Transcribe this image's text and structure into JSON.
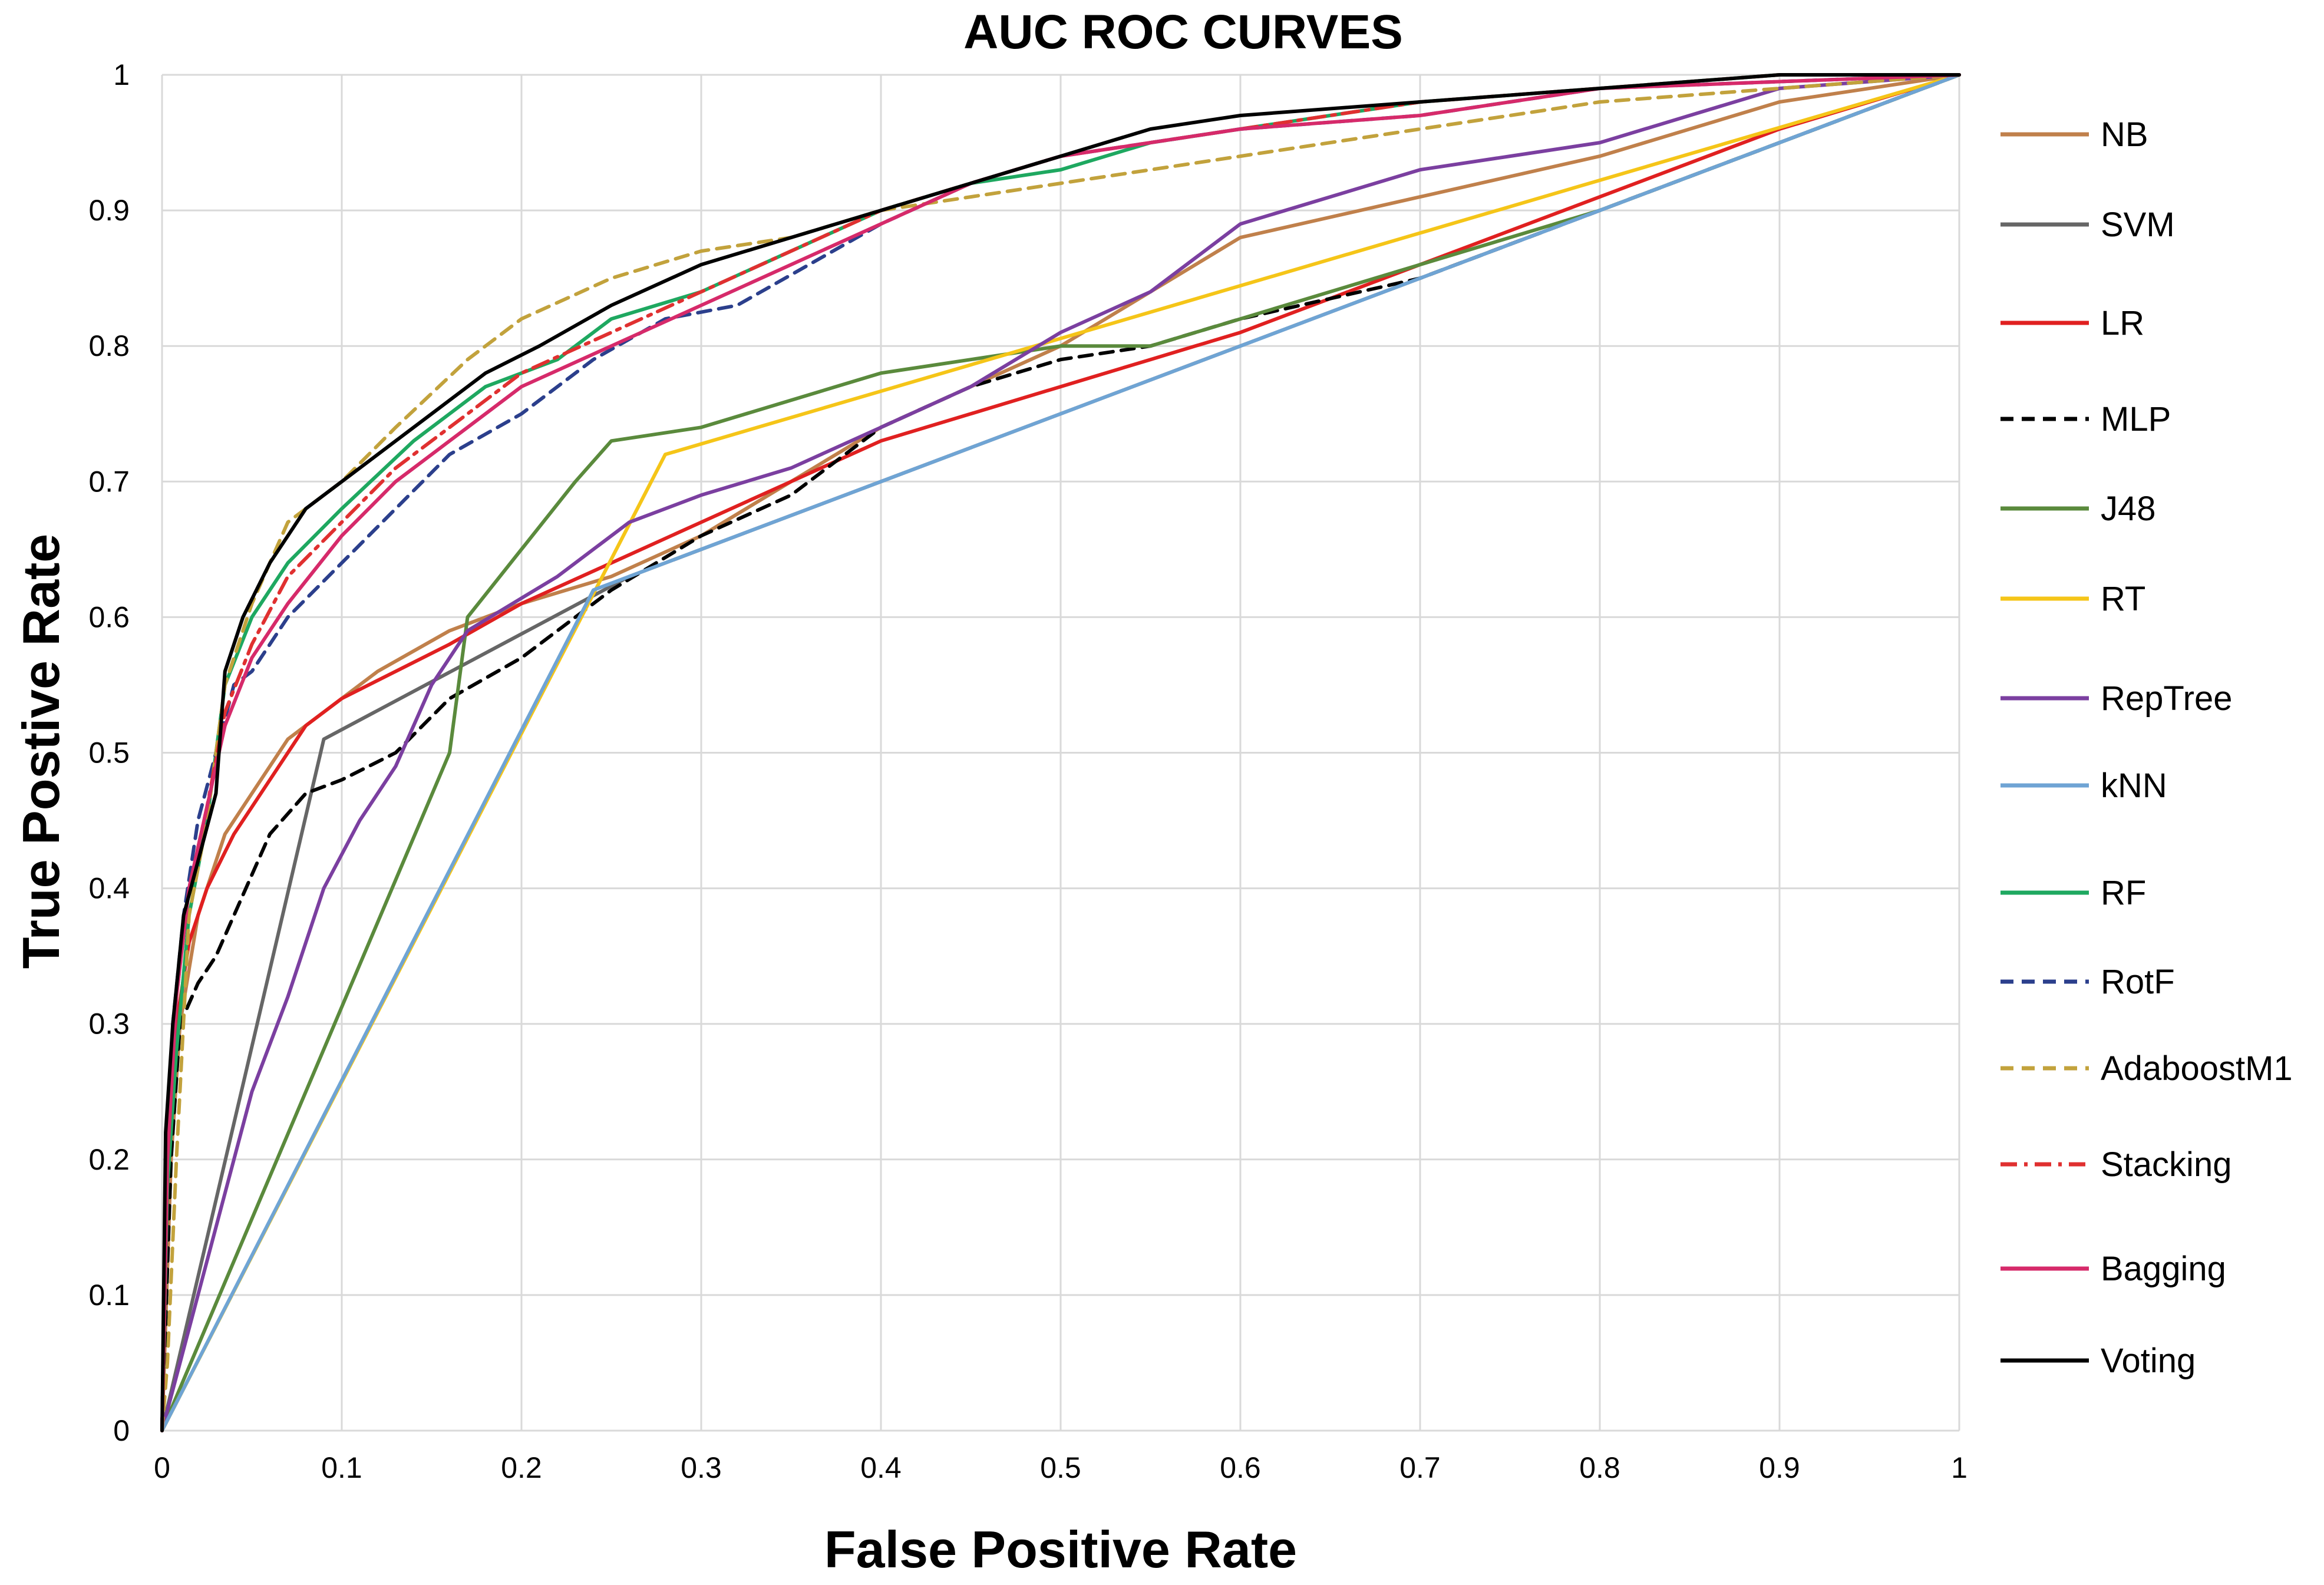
{
  "chart_data": {
    "type": "line",
    "title": "AUC ROC CURVES",
    "xlabel": "False Positive Rate",
    "ylabel": "True Postive Rate",
    "xlim": [
      0,
      1
    ],
    "ylim": [
      0,
      1
    ],
    "grid": true,
    "legend_position": "right",
    "x_ticks": [
      "0",
      "0.1",
      "0.2",
      "0.3",
      "0.4",
      "0.5",
      "0.6",
      "0.7",
      "0.8",
      "0.9",
      "1"
    ],
    "y_ticks": [
      "0",
      "0.1",
      "0.2",
      "0.3",
      "0.4",
      "0.5",
      "0.6",
      "0.7",
      "0.8",
      "0.9",
      "1"
    ],
    "series": [
      {
        "name": "NB",
        "color": "#c0804b",
        "dash": "solid",
        "points": [
          [
            0,
            0
          ],
          [
            0.005,
            0.2
          ],
          [
            0.01,
            0.3
          ],
          [
            0.02,
            0.38
          ],
          [
            0.035,
            0.44
          ],
          [
            0.05,
            0.47
          ],
          [
            0.07,
            0.51
          ],
          [
            0.09,
            0.53
          ],
          [
            0.12,
            0.56
          ],
          [
            0.16,
            0.59
          ],
          [
            0.2,
            0.61
          ],
          [
            0.25,
            0.63
          ],
          [
            0.3,
            0.66
          ],
          [
            0.35,
            0.7
          ],
          [
            0.4,
            0.74
          ],
          [
            0.45,
            0.77
          ],
          [
            0.5,
            0.8
          ],
          [
            0.55,
            0.84
          ],
          [
            0.6,
            0.88
          ],
          [
            0.7,
            0.91
          ],
          [
            0.8,
            0.94
          ],
          [
            0.9,
            0.98
          ],
          [
            1,
            1
          ]
        ]
      },
      {
        "name": "SVM",
        "color": "#666666",
        "dash": "solid",
        "points": [
          [
            0,
            0
          ],
          [
            0.09,
            0.51
          ],
          [
            0.26,
            0.63
          ],
          [
            1,
            1
          ]
        ]
      },
      {
        "name": "LR",
        "color": "#e02020",
        "dash": "solid",
        "points": [
          [
            0,
            0
          ],
          [
            0.003,
            0.18
          ],
          [
            0.008,
            0.3
          ],
          [
            0.015,
            0.36
          ],
          [
            0.025,
            0.4
          ],
          [
            0.04,
            0.44
          ],
          [
            0.06,
            0.48
          ],
          [
            0.08,
            0.52
          ],
          [
            0.1,
            0.54
          ],
          [
            0.13,
            0.56
          ],
          [
            0.16,
            0.58
          ],
          [
            0.2,
            0.61
          ],
          [
            0.25,
            0.64
          ],
          [
            0.3,
            0.67
          ],
          [
            0.35,
            0.7
          ],
          [
            0.4,
            0.73
          ],
          [
            0.45,
            0.75
          ],
          [
            0.5,
            0.77
          ],
          [
            0.55,
            0.79
          ],
          [
            0.6,
            0.81
          ],
          [
            0.7,
            0.86
          ],
          [
            0.8,
            0.91
          ],
          [
            0.9,
            0.96
          ],
          [
            1,
            1
          ]
        ]
      },
      {
        "name": "MLP",
        "color": "#000000",
        "dash": "dashed",
        "points": [
          [
            0,
            0
          ],
          [
            0.005,
            0.2
          ],
          [
            0.01,
            0.3
          ],
          [
            0.02,
            0.33
          ],
          [
            0.03,
            0.35
          ],
          [
            0.04,
            0.38
          ],
          [
            0.06,
            0.44
          ],
          [
            0.08,
            0.47
          ],
          [
            0.1,
            0.48
          ],
          [
            0.13,
            0.5
          ],
          [
            0.16,
            0.54
          ],
          [
            0.2,
            0.57
          ],
          [
            0.25,
            0.62
          ],
          [
            0.3,
            0.66
          ],
          [
            0.35,
            0.69
          ],
          [
            0.4,
            0.74
          ],
          [
            0.45,
            0.77
          ],
          [
            0.5,
            0.79
          ],
          [
            0.55,
            0.8
          ],
          [
            0.6,
            0.82
          ],
          [
            0.7,
            0.85
          ],
          [
            0.8,
            0.9
          ],
          [
            0.9,
            0.95
          ],
          [
            1,
            1
          ]
        ]
      },
      {
        "name": "J48",
        "color": "#5a8a3c",
        "dash": "solid",
        "points": [
          [
            0,
            0
          ],
          [
            0.16,
            0.5
          ],
          [
            0.17,
            0.6
          ],
          [
            0.2,
            0.65
          ],
          [
            0.23,
            0.7
          ],
          [
            0.25,
            0.73
          ],
          [
            0.3,
            0.74
          ],
          [
            0.35,
            0.76
          ],
          [
            0.4,
            0.78
          ],
          [
            0.45,
            0.79
          ],
          [
            0.5,
            0.8
          ],
          [
            0.55,
            0.8
          ],
          [
            0.6,
            0.82
          ],
          [
            0.7,
            0.86
          ],
          [
            0.8,
            0.9
          ],
          [
            0.9,
            0.95
          ],
          [
            1,
            1
          ]
        ]
      },
      {
        "name": "RT",
        "color": "#f5c518",
        "dash": "solid",
        "points": [
          [
            0,
            0
          ],
          [
            0.28,
            0.72
          ],
          [
            1,
            1
          ]
        ]
      },
      {
        "name": "RepTree",
        "color": "#7b3fa0",
        "dash": "solid",
        "points": [
          [
            0,
            0
          ],
          [
            0.03,
            0.15
          ],
          [
            0.05,
            0.25
          ],
          [
            0.07,
            0.32
          ],
          [
            0.09,
            0.4
          ],
          [
            0.11,
            0.45
          ],
          [
            0.13,
            0.49
          ],
          [
            0.14,
            0.52
          ],
          [
            0.15,
            0.55
          ],
          [
            0.17,
            0.59
          ],
          [
            0.22,
            0.63
          ],
          [
            0.26,
            0.67
          ],
          [
            0.3,
            0.69
          ],
          [
            0.35,
            0.71
          ],
          [
            0.4,
            0.74
          ],
          [
            0.45,
            0.77
          ],
          [
            0.5,
            0.81
          ],
          [
            0.55,
            0.84
          ],
          [
            0.6,
            0.89
          ],
          [
            0.65,
            0.91
          ],
          [
            0.7,
            0.93
          ],
          [
            0.75,
            0.94
          ],
          [
            0.8,
            0.95
          ],
          [
            0.85,
            0.97
          ],
          [
            0.9,
            0.99
          ],
          [
            1,
            1
          ]
        ]
      },
      {
        "name": "kNN",
        "color": "#6fa4d4",
        "dash": "solid",
        "points": [
          [
            0,
            0
          ],
          [
            0.24,
            0.62
          ],
          [
            0.3,
            0.65
          ],
          [
            0.5,
            0.75
          ],
          [
            0.7,
            0.85
          ],
          [
            1,
            1
          ]
        ]
      },
      {
        "name": "RF",
        "color": "#1ea860",
        "dash": "solid",
        "points": [
          [
            0,
            0
          ],
          [
            0.003,
            0.18
          ],
          [
            0.008,
            0.28
          ],
          [
            0.015,
            0.38
          ],
          [
            0.025,
            0.45
          ],
          [
            0.035,
            0.55
          ],
          [
            0.05,
            0.6
          ],
          [
            0.07,
            0.64
          ],
          [
            0.1,
            0.68
          ],
          [
            0.14,
            0.73
          ],
          [
            0.18,
            0.77
          ],
          [
            0.22,
            0.79
          ],
          [
            0.25,
            0.82
          ],
          [
            0.3,
            0.84
          ],
          [
            0.35,
            0.87
          ],
          [
            0.4,
            0.9
          ],
          [
            0.45,
            0.92
          ],
          [
            0.5,
            0.93
          ],
          [
            0.55,
            0.95
          ],
          [
            0.6,
            0.96
          ],
          [
            0.7,
            0.98
          ],
          [
            0.8,
            0.99
          ],
          [
            0.9,
            1
          ],
          [
            1,
            1
          ]
        ]
      },
      {
        "name": "RotF",
        "color": "#2b3f8c",
        "dash": "dashed",
        "points": [
          [
            0,
            0
          ],
          [
            0.002,
            0.2
          ],
          [
            0.006,
            0.3
          ],
          [
            0.012,
            0.38
          ],
          [
            0.02,
            0.45
          ],
          [
            0.03,
            0.5
          ],
          [
            0.04,
            0.55
          ],
          [
            0.05,
            0.56
          ],
          [
            0.07,
            0.6
          ],
          [
            0.1,
            0.64
          ],
          [
            0.13,
            0.68
          ],
          [
            0.16,
            0.72
          ],
          [
            0.2,
            0.75
          ],
          [
            0.24,
            0.79
          ],
          [
            0.28,
            0.82
          ],
          [
            0.32,
            0.83
          ],
          [
            0.36,
            0.86
          ],
          [
            0.4,
            0.89
          ],
          [
            0.45,
            0.92
          ],
          [
            0.5,
            0.94
          ],
          [
            0.6,
            0.96
          ],
          [
            0.7,
            0.97
          ],
          [
            0.8,
            0.99
          ],
          [
            0.9,
            0.995
          ],
          [
            1,
            1
          ]
        ]
      },
      {
        "name": "AdaboostM1",
        "color": "#c2a23c",
        "dash": "dashed",
        "points": [
          [
            0,
            0
          ],
          [
            0.003,
            0.05
          ],
          [
            0.008,
            0.2
          ],
          [
            0.015,
            0.38
          ],
          [
            0.025,
            0.45
          ],
          [
            0.035,
            0.55
          ],
          [
            0.05,
            0.61
          ],
          [
            0.07,
            0.67
          ],
          [
            0.1,
            0.7
          ],
          [
            0.13,
            0.74
          ],
          [
            0.17,
            0.79
          ],
          [
            0.2,
            0.82
          ],
          [
            0.25,
            0.85
          ],
          [
            0.3,
            0.87
          ],
          [
            0.35,
            0.88
          ],
          [
            0.4,
            0.9
          ],
          [
            0.45,
            0.91
          ],
          [
            0.5,
            0.92
          ],
          [
            0.55,
            0.93
          ],
          [
            0.6,
            0.94
          ],
          [
            0.7,
            0.96
          ],
          [
            0.8,
            0.98
          ],
          [
            0.9,
            0.99
          ],
          [
            1,
            1
          ]
        ]
      },
      {
        "name": "Stacking",
        "color": "#e03030",
        "dash": "dashdot",
        "points": [
          [
            0,
            0
          ],
          [
            0.003,
            0.2
          ],
          [
            0.008,
            0.32
          ],
          [
            0.015,
            0.4
          ],
          [
            0.025,
            0.46
          ],
          [
            0.035,
            0.53
          ],
          [
            0.05,
            0.58
          ],
          [
            0.07,
            0.63
          ],
          [
            0.1,
            0.67
          ],
          [
            0.13,
            0.71
          ],
          [
            0.17,
            0.75
          ],
          [
            0.2,
            0.78
          ],
          [
            0.25,
            0.81
          ],
          [
            0.3,
            0.84
          ],
          [
            0.35,
            0.87
          ],
          [
            0.4,
            0.9
          ],
          [
            0.45,
            0.92
          ],
          [
            0.5,
            0.94
          ],
          [
            0.6,
            0.96
          ],
          [
            0.7,
            0.98
          ],
          [
            0.8,
            0.99
          ],
          [
            0.9,
            1
          ],
          [
            1,
            1
          ]
        ]
      },
      {
        "name": "Bagging",
        "color": "#d62a6a",
        "dash": "solid",
        "points": [
          [
            0,
            0
          ],
          [
            0.003,
            0.2
          ],
          [
            0.008,
            0.32
          ],
          [
            0.015,
            0.4
          ],
          [
            0.025,
            0.46
          ],
          [
            0.035,
            0.52
          ],
          [
            0.05,
            0.57
          ],
          [
            0.07,
            0.61
          ],
          [
            0.1,
            0.66
          ],
          [
            0.13,
            0.7
          ],
          [
            0.17,
            0.74
          ],
          [
            0.2,
            0.77
          ],
          [
            0.25,
            0.8
          ],
          [
            0.3,
            0.83
          ],
          [
            0.35,
            0.86
          ],
          [
            0.4,
            0.89
          ],
          [
            0.45,
            0.92
          ],
          [
            0.5,
            0.94
          ],
          [
            0.6,
            0.96
          ],
          [
            0.7,
            0.97
          ],
          [
            0.8,
            0.99
          ],
          [
            0.9,
            0.995
          ],
          [
            1,
            1
          ]
        ]
      },
      {
        "name": "Voting",
        "color": "#000000",
        "dash": "solid",
        "points": [
          [
            0,
            0
          ],
          [
            0.002,
            0.22
          ],
          [
            0.006,
            0.3
          ],
          [
            0.012,
            0.38
          ],
          [
            0.02,
            0.42
          ],
          [
            0.03,
            0.47
          ],
          [
            0.035,
            0.56
          ],
          [
            0.045,
            0.6
          ],
          [
            0.06,
            0.64
          ],
          [
            0.08,
            0.68
          ],
          [
            0.1,
            0.7
          ],
          [
            0.12,
            0.72
          ],
          [
            0.15,
            0.75
          ],
          [
            0.18,
            0.78
          ],
          [
            0.21,
            0.8
          ],
          [
            0.25,
            0.83
          ],
          [
            0.3,
            0.86
          ],
          [
            0.35,
            0.88
          ],
          [
            0.4,
            0.9
          ],
          [
            0.45,
            0.92
          ],
          [
            0.5,
            0.94
          ],
          [
            0.55,
            0.96
          ],
          [
            0.6,
            0.97
          ],
          [
            0.7,
            0.98
          ],
          [
            0.8,
            0.99
          ],
          [
            0.9,
            1
          ],
          [
            1,
            1
          ]
        ]
      }
    ]
  }
}
